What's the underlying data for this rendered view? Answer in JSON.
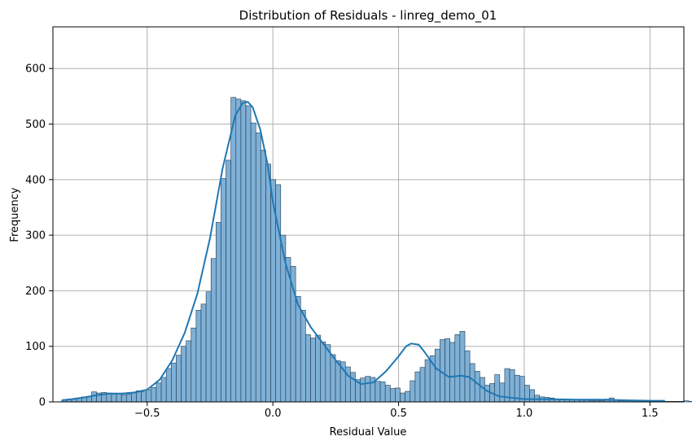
{
  "chart_data": {
    "type": "bar",
    "title": "Distribution of Residuals - linreg_demo_01",
    "xlabel": "Residual Value",
    "ylabel": "Frequency",
    "xlim": [
      -0.875,
      1.635
    ],
    "ylim": [
      0,
      675
    ],
    "xticks": [
      -0.5,
      0.0,
      0.5,
      1.0,
      1.5
    ],
    "xtick_labels": [
      "−0.5",
      "0.0",
      "0.5",
      "1.0",
      "1.5"
    ],
    "yticks": [
      0,
      100,
      200,
      300,
      400,
      500,
      600
    ],
    "ytick_labels": [
      "0",
      "100",
      "200",
      "300",
      "400",
      "500",
      "600"
    ],
    "grid": true,
    "bin_start": -0.84,
    "bin_width": 0.0198,
    "values": [
      3,
      4,
      5,
      7,
      9,
      10,
      18,
      16,
      17,
      16,
      14,
      15,
      13,
      14,
      16,
      20,
      18,
      22,
      26,
      34,
      44,
      60,
      70,
      84,
      100,
      110,
      133,
      165,
      176,
      198,
      258,
      323,
      402,
      435,
      548,
      545,
      542,
      533,
      502,
      484,
      453,
      428,
      400,
      391,
      300,
      260,
      244,
      190,
      165,
      121,
      115,
      120,
      108,
      103,
      85,
      74,
      72,
      63,
      53,
      40,
      43,
      46,
      44,
      37,
      36,
      30,
      24,
      25,
      16,
      19,
      38,
      54,
      62,
      76,
      83,
      95,
      112,
      114,
      107,
      121,
      127,
      92,
      69,
      55,
      44,
      30,
      33,
      49,
      34,
      60,
      58,
      48,
      46,
      30,
      22,
      12,
      9,
      8,
      7,
      5,
      4,
      5,
      4,
      4,
      3,
      3,
      2,
      2,
      2,
      5,
      7,
      3,
      2,
      2,
      3,
      2,
      2,
      2,
      1,
      2,
      1,
      1,
      1,
      1,
      1,
      2,
      1,
      2,
      1,
      1,
      1,
      2,
      1,
      1,
      1
    ],
    "kde": {
      "x": [
        -0.84,
        -0.8,
        -0.75,
        -0.7,
        -0.65,
        -0.6,
        -0.55,
        -0.5,
        -0.45,
        -0.4,
        -0.35,
        -0.3,
        -0.25,
        -0.2,
        -0.15,
        -0.12,
        -0.1,
        -0.08,
        -0.05,
        -0.02,
        0.0,
        0.05,
        0.1,
        0.15,
        0.2,
        0.25,
        0.3,
        0.35,
        0.4,
        0.45,
        0.5,
        0.53,
        0.55,
        0.58,
        0.6,
        0.65,
        0.7,
        0.75,
        0.78,
        0.8,
        0.85,
        0.9,
        1.0,
        1.1,
        1.2,
        1.3,
        1.4,
        1.5,
        1.56
      ],
      "y": [
        3,
        5,
        8,
        12,
        15,
        15,
        17,
        22,
        40,
        75,
        125,
        195,
        295,
        420,
        515,
        538,
        540,
        530,
        490,
        425,
        360,
        250,
        175,
        135,
        105,
        75,
        47,
        32,
        35,
        55,
        82,
        100,
        105,
        103,
        92,
        60,
        45,
        47,
        45,
        38,
        20,
        10,
        5,
        5,
        4,
        4,
        3,
        2,
        2
      ]
    },
    "colors": {
      "bar_fill": "#7fb0d6",
      "bar_edge": "#1f3a50",
      "kde_line": "#1f77b4",
      "grid": "#b0b0b0"
    }
  }
}
